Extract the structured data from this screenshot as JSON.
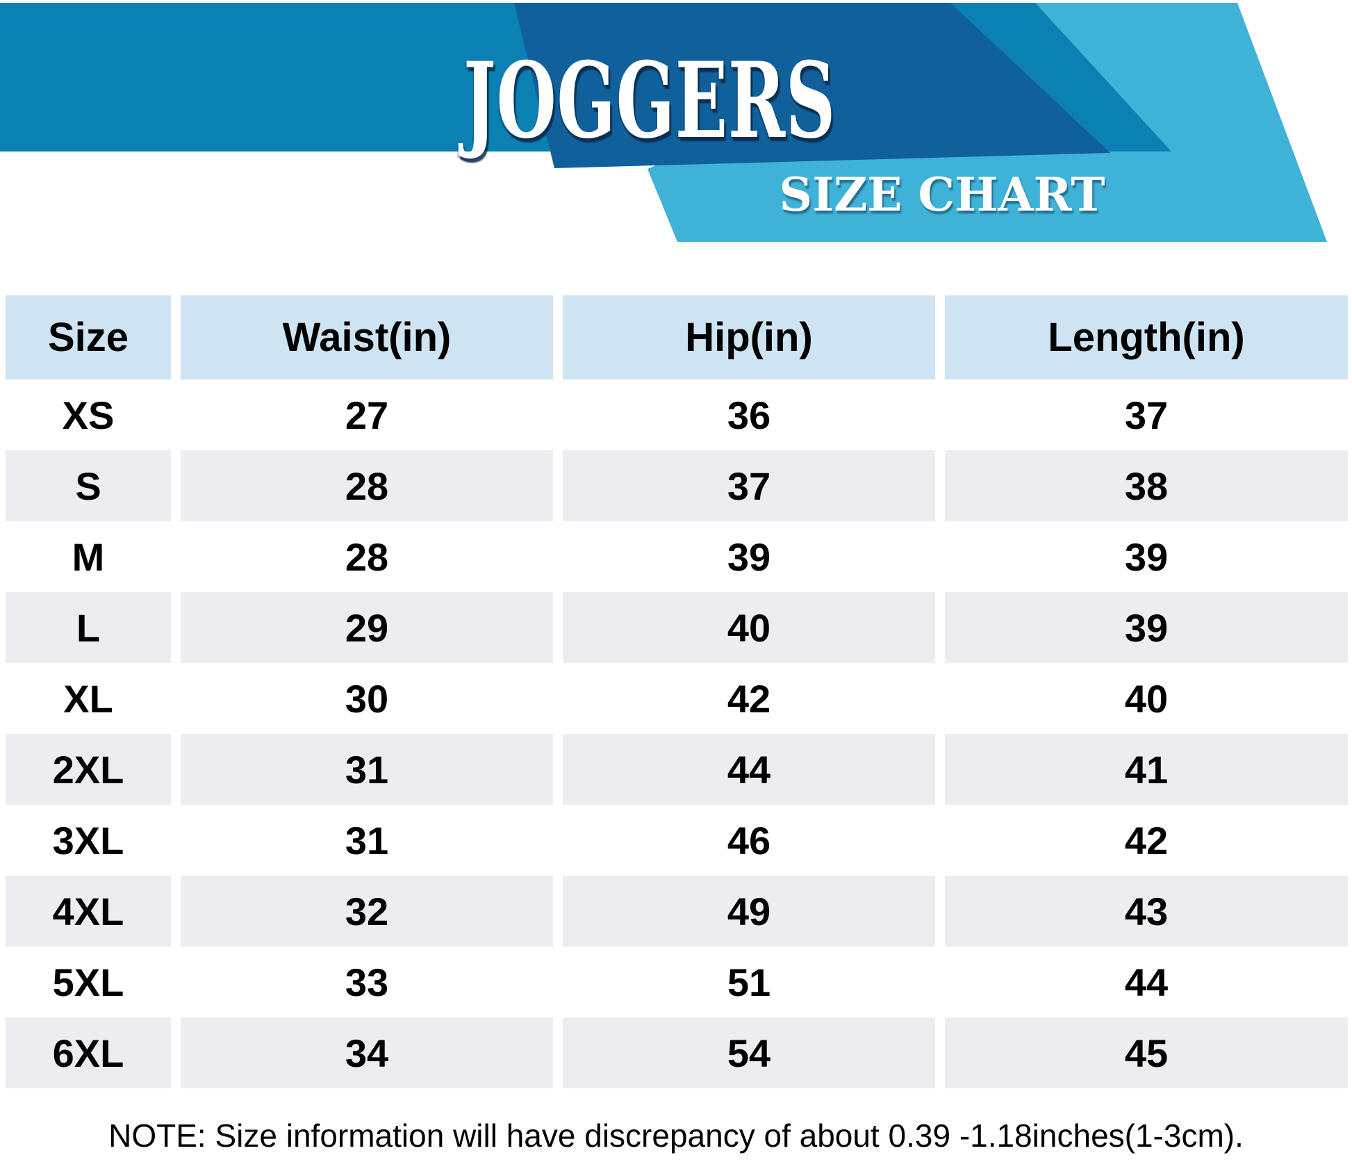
{
  "colors": {
    "banner_primary": "#0a80b3",
    "banner_dark": "#10609c",
    "banner_light": "#3fb2d8",
    "header_bg": "#cee4f2",
    "row_alt_bg": "#ececf1",
    "text": "#000000",
    "banner_text": "#ffffff"
  },
  "banner": {
    "title": "JOGGERS",
    "subtitle": "SIZE CHART"
  },
  "chart_data": {
    "type": "table",
    "title": "JOGGERS",
    "subtitle": "SIZE CHART",
    "columns": [
      "Size",
      "Waist(in)",
      "Hip(in)",
      "Length(in)"
    ],
    "rows": [
      [
        "XS",
        "27",
        "36",
        "37"
      ],
      [
        "S",
        "28",
        "37",
        "38"
      ],
      [
        "M",
        "28",
        "39",
        "39"
      ],
      [
        "L",
        "29",
        "40",
        "39"
      ],
      [
        "XL",
        "30",
        "42",
        "40"
      ],
      [
        "2XL",
        "31",
        "44",
        "41"
      ],
      [
        "3XL",
        "31",
        "46",
        "42"
      ],
      [
        "4XL",
        "32",
        "49",
        "43"
      ],
      [
        "5XL",
        "33",
        "51",
        "44"
      ],
      [
        "6XL",
        "34",
        "54",
        "45"
      ]
    ],
    "note": "NOTE: Size information will have discrepancy of about 0.39 -1.18inches(1-3cm)."
  }
}
